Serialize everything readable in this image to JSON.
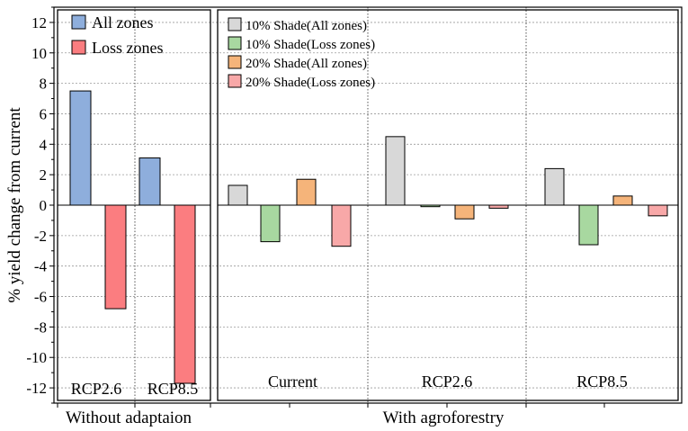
{
  "chart_data": {
    "type": "bar",
    "ylabel": "% yield change from current",
    "ylim": [
      -13,
      13
    ],
    "yticks": [
      12,
      10,
      8,
      6,
      4,
      2,
      0,
      -2,
      -4,
      -6,
      -8,
      -10,
      -12
    ],
    "grid": true,
    "panels": [
      {
        "name": "Without adaptaion",
        "legend": [
          {
            "label": "All zones",
            "color": "#8eaedc"
          },
          {
            "label": "Loss zones",
            "color": "#fb7d80"
          }
        ],
        "groups": [
          {
            "label": "RCP2.6",
            "bars": [
              {
                "series": "All zones",
                "value": 7.5,
                "color": "#8eaedc"
              },
              {
                "series": "Loss zones",
                "value": -6.8,
                "color": "#fb7d80"
              }
            ]
          },
          {
            "label": "RCP8.5",
            "bars": [
              {
                "series": "All zones",
                "value": 3.1,
                "color": "#8eaedc"
              },
              {
                "series": "Loss zones",
                "value": -11.7,
                "color": "#fb7d80"
              }
            ]
          }
        ]
      },
      {
        "name": "With  agroforestry",
        "legend": [
          {
            "label": "10% Shade(All zones)",
            "color": "#d8d8d8"
          },
          {
            "label": "10% Shade(Loss zones)",
            "color": "#a8d8a0"
          },
          {
            "label": "20% Shade(All zones)",
            "color": "#f5b47a"
          },
          {
            "label": "20% Shade(Loss zones)",
            "color": "#f8a8a8"
          }
        ],
        "groups": [
          {
            "label": "Current",
            "bars": [
              {
                "series": "10% Shade(All zones)",
                "value": 1.3,
                "color": "#d8d8d8"
              },
              {
                "series": "10% Shade(Loss zones)",
                "value": -2.4,
                "color": "#a8d8a0"
              },
              {
                "series": "20% Shade(All zones)",
                "value": 1.7,
                "color": "#f5b47a"
              },
              {
                "series": "20% Shade(Loss zones)",
                "value": -2.7,
                "color": "#f8a8a8"
              }
            ]
          },
          {
            "label": "RCP2.6",
            "bars": [
              {
                "series": "10% Shade(All zones)",
                "value": 4.5,
                "color": "#d8d8d8"
              },
              {
                "series": "10% Shade(Loss zones)",
                "value": -0.1,
                "color": "#a8d8a0"
              },
              {
                "series": "20% Shade(All zones)",
                "value": -0.9,
                "color": "#f5b47a"
              },
              {
                "series": "20% Shade(Loss zones)",
                "value": -0.2,
                "color": "#f8a8a8"
              }
            ]
          },
          {
            "label": "RCP8.5",
            "bars": [
              {
                "series": "10% Shade(All zones)",
                "value": 2.4,
                "color": "#d8d8d8"
              },
              {
                "series": "10% Shade(Loss zones)",
                "value": -2.6,
                "color": "#a8d8a0"
              },
              {
                "series": "20% Shade(All zones)",
                "value": 0.6,
                "color": "#f5b47a"
              },
              {
                "series": "20% Shade(Loss zones)",
                "value": -0.7,
                "color": "#f8a8a8"
              }
            ]
          }
        ]
      }
    ]
  }
}
